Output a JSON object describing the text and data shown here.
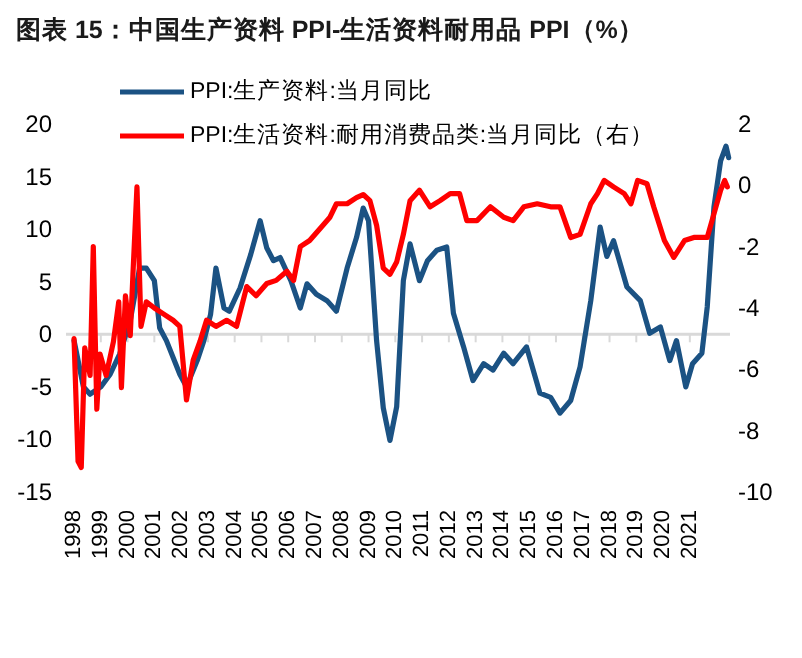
{
  "chart_data": {
    "type": "line",
    "title": "图表 15：中国生产资料 PPI-生活资料耐用品 PPI（%）",
    "xlim": [
      1997.7,
      2022.5
    ],
    "xticks": [
      1998,
      1999,
      2000,
      2001,
      2002,
      2003,
      2004,
      2005,
      2006,
      2007,
      2008,
      2009,
      2010,
      2011,
      2012,
      2013,
      2014,
      2015,
      2016,
      2017,
      2018,
      2019,
      2020,
      2021
    ],
    "ylim": [
      -15,
      20
    ],
    "yticks": [
      -15,
      -10,
      -5,
      0,
      5,
      10,
      15,
      20
    ],
    "y2lim": [
      -10,
      2
    ],
    "y2ticks": [
      -10,
      -8,
      -6,
      -4,
      -2,
      0,
      2
    ],
    "legend": "top",
    "series": [
      {
        "name": "PPI:生产资料:当月同比",
        "color": "#1b5283",
        "x": [
          1998.0,
          1998.35,
          1998.6,
          1999.0,
          1999.35,
          1999.7,
          2000.1,
          2000.45,
          2000.7,
          2001.0,
          2001.2,
          2001.45,
          2001.95,
          2002.2,
          2002.6,
          2002.85,
          2003.1,
          2003.3,
          2003.6,
          2003.8,
          2004.2,
          2004.6,
          2004.95,
          2005.2,
          2005.45,
          2005.7,
          2006.1,
          2006.45,
          2006.7,
          2007.05,
          2007.45,
          2007.8,
          2008.2,
          2008.55,
          2008.8,
          2009.0,
          2009.3,
          2009.55,
          2009.8,
          2010.05,
          2010.3,
          2010.55,
          2010.9,
          2011.2,
          2011.55,
          2011.92,
          2012.17,
          2012.55,
          2012.9,
          2013.3,
          2013.65,
          2014.05,
          2014.4,
          2014.9,
          2015.4,
          2015.8,
          2016.15,
          2016.55,
          2016.9,
          2017.3,
          2017.65,
          2017.9,
          2018.15,
          2018.65,
          2019.15,
          2019.5,
          2019.9,
          2020.25,
          2020.5,
          2020.85,
          2021.1,
          2021.45,
          2021.65,
          2021.9,
          2022.15,
          2022.35,
          2022.45
        ],
        "values": [
          -0.6,
          -5,
          -5.7,
          -5,
          -3.8,
          -1.9,
          1.3,
          6.3,
          6.3,
          5.1,
          0.6,
          -0.6,
          -3.8,
          -5,
          -2.5,
          -0.6,
          1.9,
          6.3,
          2.5,
          2.2,
          4.4,
          7.6,
          10.8,
          8.2,
          7,
          7.3,
          5.1,
          2.5,
          4.8,
          3.8,
          3.2,
          2.2,
          6.3,
          9.2,
          12,
          10.8,
          -0.6,
          -7,
          -10.1,
          -6.9,
          5.1,
          8.6,
          5.1,
          7,
          8,
          8.3,
          2,
          -1.2,
          -4.4,
          -2.8,
          -3.4,
          -1.8,
          -2.8,
          -1.2,
          -5.6,
          -6,
          -7.5,
          -6.3,
          -3.1,
          3.2,
          10.2,
          7.4,
          8.9,
          4.5,
          3.2,
          0.1,
          0.7,
          -2.5,
          -0.6,
          -5,
          -2.8,
          -1.8,
          2.6,
          12.1,
          16.5,
          17.9,
          16.8
        ]
      },
      {
        "name": "PPI:生活资料:耐用消费品类:当月同比（右）",
        "color": "#ff0000",
        "axis": "y2",
        "x": [
          1998.0,
          1998.15,
          1998.27,
          1998.4,
          1998.6,
          1998.72,
          1998.85,
          1998.97,
          1999.2,
          1999.47,
          1999.67,
          1999.77,
          1999.92,
          2000.1,
          2000.2,
          2000.35,
          2000.5,
          2000.7,
          2001.0,
          2001.35,
          2001.7,
          2001.95,
          2002.2,
          2002.45,
          2002.7,
          2002.95,
          2003.3,
          2003.7,
          2004.07,
          2004.45,
          2004.8,
          2005.2,
          2005.55,
          2005.95,
          2006.2,
          2006.45,
          2006.8,
          2007.2,
          2007.55,
          2007.8,
          2008.2,
          2008.55,
          2008.8,
          2009.05,
          2009.3,
          2009.55,
          2009.8,
          2010.05,
          2010.3,
          2010.55,
          2010.9,
          2011.3,
          2011.67,
          2012.05,
          2012.4,
          2012.67,
          2013.05,
          2013.55,
          2014.05,
          2014.4,
          2014.8,
          2015.3,
          2015.8,
          2016.15,
          2016.55,
          2016.9,
          2017.3,
          2017.55,
          2017.8,
          2018.15,
          2018.55,
          2018.8,
          2019.05,
          2019.4,
          2019.65,
          2020.05,
          2020.4,
          2020.8,
          2021.15,
          2021.65,
          2021.9,
          2022.15,
          2022.3,
          2022.4
        ],
        "values": [
          -5,
          -9,
          -9.2,
          -5.3,
          -6.2,
          -2,
          -7.3,
          -5.5,
          -6.2,
          -5.1,
          -3.8,
          -6.6,
          -3.6,
          -4.9,
          -2.9,
          -0.05,
          -4.6,
          -3.8,
          -4,
          -4.2,
          -4.4,
          -4.6,
          -7,
          -5.7,
          -5.1,
          -4.4,
          -4.6,
          -4.4,
          -4.6,
          -3.3,
          -3.6,
          -3.2,
          -3.1,
          -2.8,
          -3.1,
          -2,
          -1.8,
          -1.4,
          -1.05,
          -0.6,
          -0.6,
          -0.4,
          -0.3,
          -0.5,
          -1.3,
          -2.7,
          -2.9,
          -2.5,
          -1.6,
          -0.5,
          -0.16,
          -0.7,
          -0.5,
          -0.27,
          -0.27,
          -1.15,
          -1.15,
          -0.7,
          -1.04,
          -1.15,
          -0.7,
          -0.6,
          -0.7,
          -0.7,
          -1.7,
          -1.6,
          -0.6,
          -0.27,
          0.16,
          -0.05,
          -0.27,
          -0.6,
          0.16,
          0.05,
          -0.7,
          -1.8,
          -2.35,
          -1.8,
          -1.7,
          -1.7,
          -0.93,
          -0.16,
          0.16,
          -0.05
        ]
      }
    ]
  }
}
